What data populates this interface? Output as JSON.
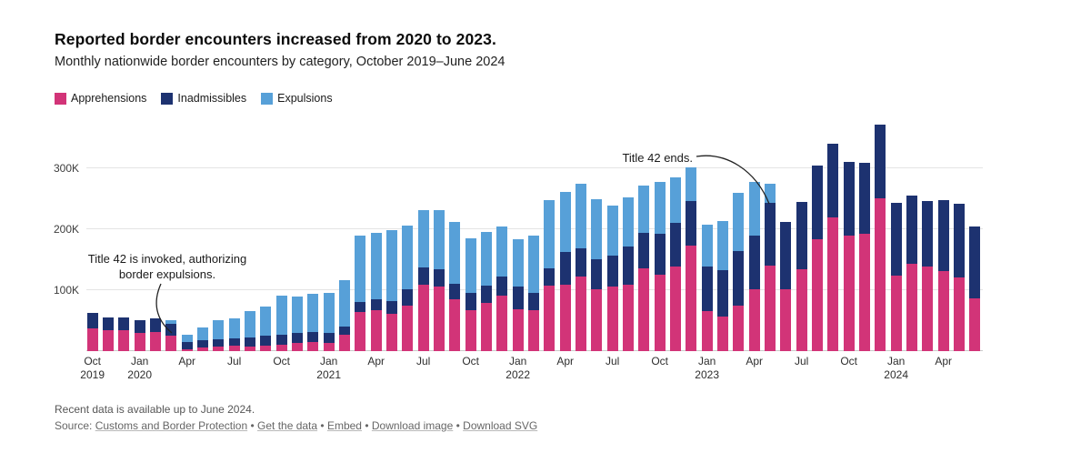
{
  "header": {
    "title": "Reported border encounters increased from 2020 to 2023.",
    "subtitle": "Monthly nationwide border encounters by category, October 2019–June 2024"
  },
  "legend": [
    {
      "label": "Apprehensions",
      "color": "#d23478"
    },
    {
      "label": "Inadmissibles",
      "color": "#1d3270"
    },
    {
      "label": "Expulsions",
      "color": "#57a0d8"
    }
  ],
  "chart_data": {
    "type": "bar",
    "stacked": true,
    "title": "Reported border encounters increased from 2020 to 2023.",
    "subtitle": "Monthly nationwide border encounters by category, October 2019–June 2024",
    "unit": "thousands of encounters",
    "ylim": [
      0,
      388
    ],
    "grid": true,
    "y_ticks": [
      {
        "value": 100,
        "label": "100K"
      },
      {
        "value": 200,
        "label": "200K"
      },
      {
        "value": 300,
        "label": "300K"
      }
    ],
    "categories": [
      "Oct 2019",
      "Nov 2019",
      "Dec 2019",
      "Jan 2020",
      "Feb 2020",
      "Mar 2020",
      "Apr 2020",
      "May 2020",
      "Jun 2020",
      "Jul 2020",
      "Aug 2020",
      "Sep 2020",
      "Oct 2020",
      "Nov 2020",
      "Dec 2020",
      "Jan 2021",
      "Feb 2021",
      "Mar 2021",
      "Apr 2021",
      "May 2021",
      "Jun 2021",
      "Jul 2021",
      "Aug 2021",
      "Sep 2021",
      "Oct 2021",
      "Nov 2021",
      "Dec 2021",
      "Jan 2022",
      "Feb 2022",
      "Mar 2022",
      "Apr 2022",
      "May 2022",
      "Jun 2022",
      "Jul 2022",
      "Aug 2022",
      "Sep 2022",
      "Oct 2022",
      "Nov 2022",
      "Dec 2022",
      "Jan 2023",
      "Feb 2023",
      "Mar 2023",
      "Apr 2023",
      "May 2023",
      "Jun 2023",
      "Jul 2023",
      "Aug 2023",
      "Sep 2023",
      "Oct 2023",
      "Nov 2023",
      "Dec 2023",
      "Jan 2024",
      "Feb 2024",
      "Mar 2024",
      "Apr 2024",
      "May 2024",
      "Jun 2024"
    ],
    "series": [
      {
        "name": "Apprehensions",
        "color": "#d23478",
        "values": [
          37,
          35,
          34,
          30,
          32,
          25.5,
          3.5,
          6.5,
          8,
          9,
          8,
          9,
          10.5,
          13,
          14.5,
          13,
          26.5,
          64,
          67.5,
          61.5,
          75,
          108.5,
          106,
          85,
          66.5,
          79,
          91.5,
          68,
          66.5,
          107.5,
          108.5,
          122.5,
          101,
          106,
          109,
          135.5,
          125.5,
          139.5,
          172.5,
          65.5,
          56.5,
          74,
          101,
          140.5,
          101,
          134,
          183,
          220,
          190,
          192.5,
          251.5,
          124,
          143,
          139,
          131.5,
          120.5,
          86.5
        ]
      },
      {
        "name": "Inadmissibles",
        "color": "#1d3270",
        "values": [
          25,
          21,
          21,
          21.5,
          22.5,
          19,
          11.5,
          11.5,
          11,
          11.5,
          14,
          16,
          16,
          16.5,
          17,
          16.5,
          14,
          17,
          17.5,
          21,
          26,
          28.5,
          28.5,
          25,
          29,
          28.5,
          31,
          38,
          29.5,
          28,
          53.5,
          46,
          49.5,
          51,
          63,
          58.5,
          67,
          70.5,
          73.5,
          74,
          77,
          90.5,
          88,
          103,
          111,
          111,
          121,
          121,
          120,
          116.5,
          120.5,
          119,
          113,
          107.5,
          116,
          121,
          117.5
        ]
      },
      {
        "name": "Expulsions",
        "color": "#57a0d8",
        "values": [
          0,
          0,
          0,
          0,
          0,
          7,
          12.5,
          21,
          32,
          33.5,
          43,
          48,
          65,
          59.5,
          62.5,
          66.5,
          75.5,
          109,
          109,
          116.5,
          105,
          95,
          97.5,
          102,
          89.5,
          88.5,
          81.5,
          78,
          94,
          112.5,
          99,
          106.5,
          98.5,
          82,
          80,
          77,
          85.5,
          75,
          56,
          67.5,
          79.5,
          94.5,
          88,
          30.5,
          0,
          0,
          0,
          0,
          0,
          0,
          0,
          0,
          0,
          0,
          0,
          0,
          0
        ]
      }
    ],
    "x_ticks": [
      {
        "index": 0,
        "month": "Oct",
        "year": "2019"
      },
      {
        "index": 3,
        "month": "Jan",
        "year": "2020"
      },
      {
        "index": 6,
        "month": "Apr",
        "year": ""
      },
      {
        "index": 9,
        "month": "Jul",
        "year": ""
      },
      {
        "index": 12,
        "month": "Oct",
        "year": ""
      },
      {
        "index": 15,
        "month": "Jan",
        "year": "2021"
      },
      {
        "index": 18,
        "month": "Apr",
        "year": ""
      },
      {
        "index": 21,
        "month": "Jul",
        "year": ""
      },
      {
        "index": 24,
        "month": "Oct",
        "year": ""
      },
      {
        "index": 27,
        "month": "Jan",
        "year": "2022"
      },
      {
        "index": 30,
        "month": "Apr",
        "year": ""
      },
      {
        "index": 33,
        "month": "Jul",
        "year": ""
      },
      {
        "index": 36,
        "month": "Oct",
        "year": ""
      },
      {
        "index": 39,
        "month": "Jan",
        "year": "2023"
      },
      {
        "index": 42,
        "month": "Apr",
        "year": ""
      },
      {
        "index": 45,
        "month": "Jul",
        "year": ""
      },
      {
        "index": 48,
        "month": "Oct",
        "year": ""
      },
      {
        "index": 51,
        "month": "Jan",
        "year": "2024"
      },
      {
        "index": 54,
        "month": "Apr",
        "year": ""
      }
    ],
    "annotations": [
      {
        "lines": [
          "Title 42 is invoked, authorizing",
          "border expulsions."
        ],
        "points_to": "Mar 2020"
      },
      {
        "lines": [
          "Title 42 ends."
        ],
        "points_to": "May 2023"
      }
    ],
    "legend_position": "top-left"
  },
  "footer": {
    "note": "Recent data is available up to June 2024.",
    "source_prefix": "Source:",
    "separator": "•",
    "links": [
      "Customs and Border Protection",
      "Get the data",
      "Embed",
      "Download image",
      "Download SVG"
    ]
  }
}
